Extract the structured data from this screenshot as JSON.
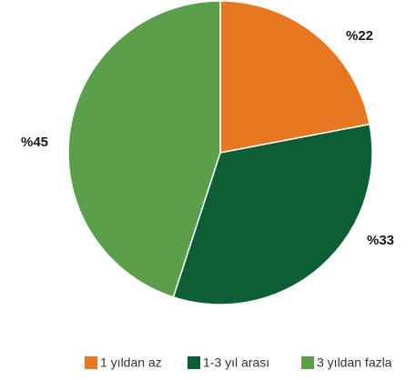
{
  "chart_data": {
    "type": "pie",
    "categories": [
      "1 yıldan az",
      "1-3 yıl arası",
      "3 yıldan fazla"
    ],
    "values": [
      22,
      33,
      45
    ],
    "value_labels": [
      "%22",
      "%33",
      "%45"
    ],
    "colors": [
      "#e87722",
      "#0e5e35",
      "#5aa04a"
    ],
    "legend": "bottom"
  }
}
